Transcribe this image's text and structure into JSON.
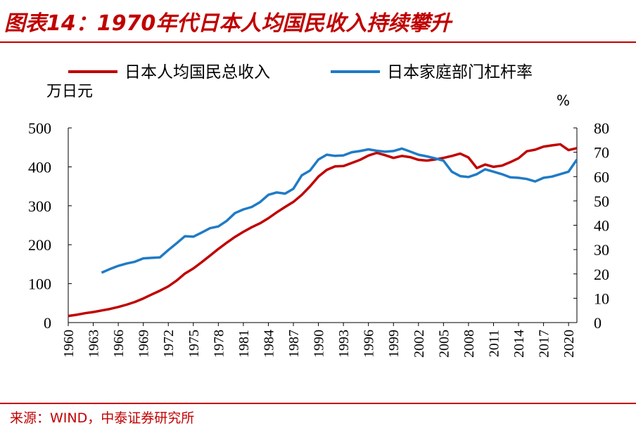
{
  "header": {
    "title": "图表14：1970年代日本人均国民收入持续攀升"
  },
  "footer": {
    "source": "来源：WIND，中泰证券研究所"
  },
  "chart_data": {
    "type": "line",
    "left_axis_unit": "万日元",
    "right_axis_unit": "%",
    "y_left_lim": [
      0,
      500
    ],
    "y_left_ticks": [
      "0",
      "100",
      "200",
      "300",
      "400",
      "500"
    ],
    "y_right_lim": [
      0,
      80
    ],
    "y_right_ticks": [
      "0",
      "10",
      "20",
      "30",
      "40",
      "50",
      "60",
      "70",
      "80"
    ],
    "x_lim": [
      1960,
      2021
    ],
    "x_ticks": [
      "1960",
      "1963",
      "1966",
      "1969",
      "1972",
      "1975",
      "1978",
      "1981",
      "1984",
      "1987",
      "1990",
      "1993",
      "1996",
      "1999",
      "2002",
      "2005",
      "2008",
      "2011",
      "2014",
      "2017",
      "2020"
    ],
    "legend_position": "top",
    "grid": false,
    "series": [
      {
        "name": "日本人均国民总收入",
        "axis": "left",
        "color": "#c00000",
        "x": [
          1960,
          1961,
          1962,
          1963,
          1964,
          1965,
          1966,
          1967,
          1968,
          1969,
          1970,
          1971,
          1972,
          1973,
          1974,
          1975,
          1976,
          1977,
          1978,
          1979,
          1980,
          1981,
          1982,
          1983,
          1984,
          1985,
          1986,
          1987,
          1988,
          1989,
          1990,
          1991,
          1992,
          1993,
          1994,
          1995,
          1996,
          1997,
          1998,
          1999,
          2000,
          2001,
          2002,
          2003,
          2004,
          2005,
          2006,
          2007,
          2008,
          2009,
          2010,
          2011,
          2012,
          2013,
          2014,
          2015,
          2016,
          2017,
          2018,
          2019,
          2020,
          2021
        ],
        "values": [
          17,
          20,
          24,
          27,
          31,
          35,
          40,
          46,
          53,
          62,
          72,
          82,
          93,
          108,
          126,
          139,
          155,
          172,
          189,
          205,
          220,
          233,
          245,
          255,
          268,
          283,
          297,
          310,
          328,
          350,
          375,
          392,
          401,
          402,
          410,
          418,
          429,
          436,
          430,
          423,
          428,
          425,
          418,
          416,
          419,
          423,
          428,
          434,
          424,
          397,
          406,
          400,
          403,
          412,
          422,
          440,
          444,
          452,
          455,
          458,
          443,
          448
        ]
      },
      {
        "name": "日本家庭部门杠杆率",
        "axis": "right",
        "color": "#1f7bc6",
        "x": [
          1964,
          1965,
          1966,
          1967,
          1968,
          1969,
          1970,
          1971,
          1972,
          1973,
          1974,
          1975,
          1976,
          1977,
          1978,
          1979,
          1980,
          1981,
          1982,
          1983,
          1984,
          1985,
          1986,
          1987,
          1988,
          1989,
          1990,
          1991,
          1992,
          1993,
          1994,
          1995,
          1996,
          1997,
          1998,
          1999,
          2000,
          2001,
          2002,
          2003,
          2004,
          2005,
          2006,
          2007,
          2008,
          2009,
          2010,
          2011,
          2012,
          2013,
          2014,
          2015,
          2016,
          2017,
          2018,
          2019,
          2020,
          2021
        ],
        "values": [
          20.5,
          22,
          23.3,
          24.3,
          25,
          26.4,
          26.6,
          26.8,
          29.8,
          32.6,
          35.5,
          35.3,
          37,
          38.8,
          39.5,
          41.8,
          45,
          46.5,
          47.5,
          49.5,
          52.5,
          53.5,
          53,
          55,
          60.5,
          62.5,
          67,
          69,
          68.5,
          68.7,
          70,
          70.5,
          71.2,
          70.6,
          70.2,
          70.5,
          71.5,
          70.3,
          69,
          68.3,
          67.5,
          66.5,
          62,
          60.2,
          59.8,
          61,
          63,
          62,
          61,
          59.7,
          59.5,
          59,
          58,
          59.5,
          60,
          61,
          62,
          67
        ]
      }
    ]
  }
}
